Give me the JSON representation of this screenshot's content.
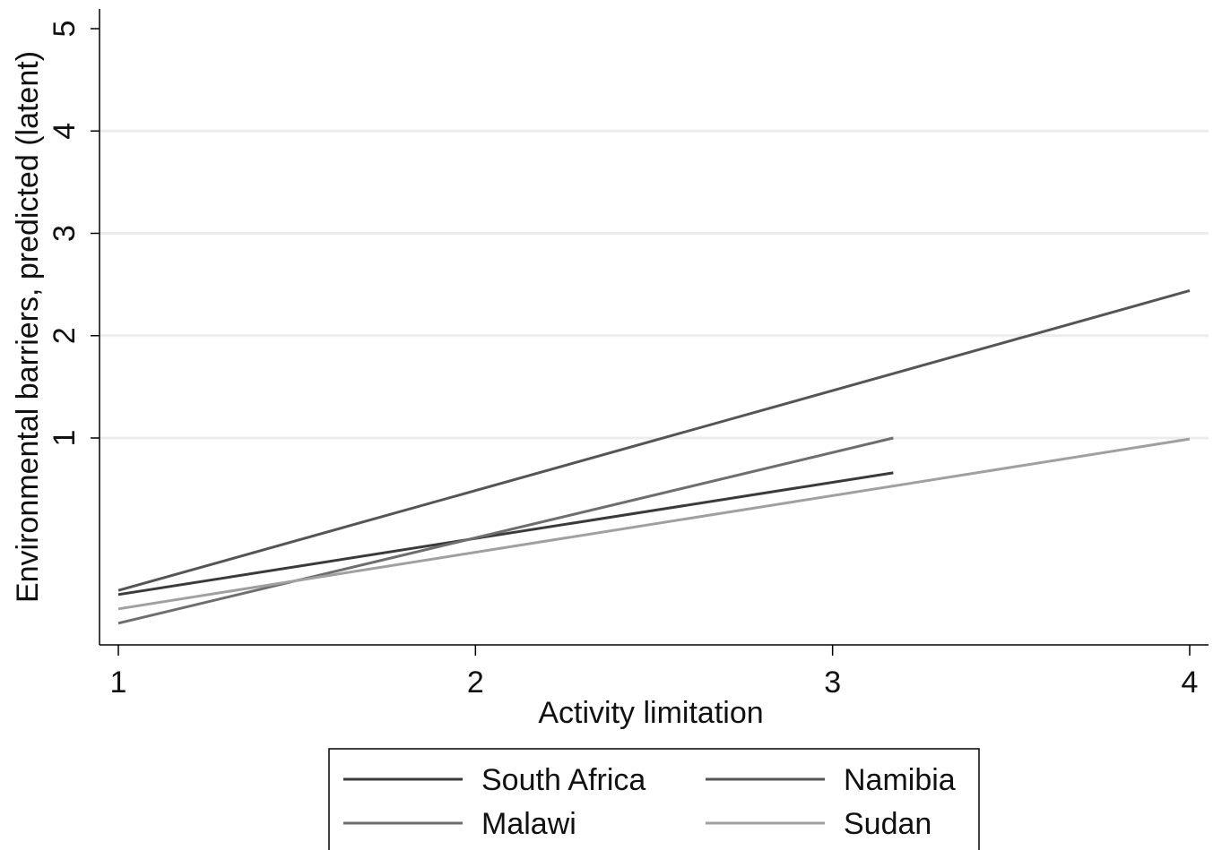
{
  "chart_data": {
    "type": "line",
    "xlabel": "Activity limitation",
    "ylabel": "Environmental barriers, predicted (latent)",
    "xlim": [
      0.95,
      4.05
    ],
    "ylim": [
      -1.0,
      5.2
    ],
    "xticks": [
      1,
      2,
      3,
      4
    ],
    "yticks": [
      1,
      2,
      3,
      4,
      5
    ],
    "grid": true,
    "legend_position": "bottom",
    "series": [
      {
        "name": "South Africa",
        "color": "#3a3a3a",
        "x": [
          1,
          3.17
        ],
        "y": [
          -0.53,
          0.66
        ]
      },
      {
        "name": "Namibia",
        "color": "#555555",
        "x": [
          1,
          4
        ],
        "y": [
          -0.49,
          2.44
        ]
      },
      {
        "name": "Malawi",
        "color": "#6e6e6e",
        "x": [
          1,
          3.17
        ],
        "y": [
          -0.81,
          1.0
        ]
      },
      {
        "name": "Sudan",
        "color": "#a0a0a0",
        "x": [
          1,
          4
        ],
        "y": [
          -0.67,
          0.99
        ]
      }
    ]
  }
}
